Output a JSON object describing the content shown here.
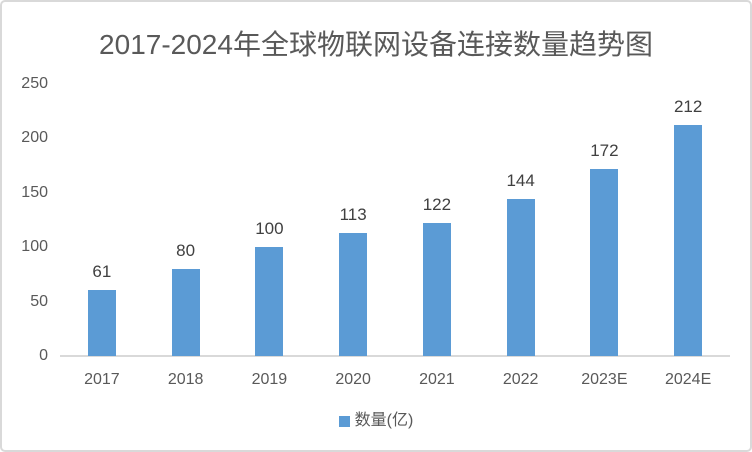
{
  "chart_data": {
    "type": "bar",
    "title": "2017-2024年全球物联网设备连接数量趋势图",
    "categories": [
      "2017",
      "2018",
      "2019",
      "2020",
      "2021",
      "2022",
      "2023E",
      "2024E"
    ],
    "series": [
      {
        "name": "数量(亿)",
        "values": [
          61,
          80,
          100,
          113,
          122,
          144,
          172,
          212
        ]
      }
    ],
    "y_ticks": [
      0,
      50,
      100,
      150,
      200,
      250
    ],
    "ylim": [
      0,
      250
    ],
    "xlabel": "",
    "ylabel": "",
    "grid": false,
    "legend_position": "bottom",
    "data_labels_shown": true,
    "colors": {
      "bar": "#5b9bd5",
      "title_text": "#595959",
      "axis_text": "#595959",
      "data_label_text": "#404040",
      "axis_line": "#d9d9d9",
      "frame_border": "#d9d9d9",
      "background": "#ffffff"
    }
  }
}
